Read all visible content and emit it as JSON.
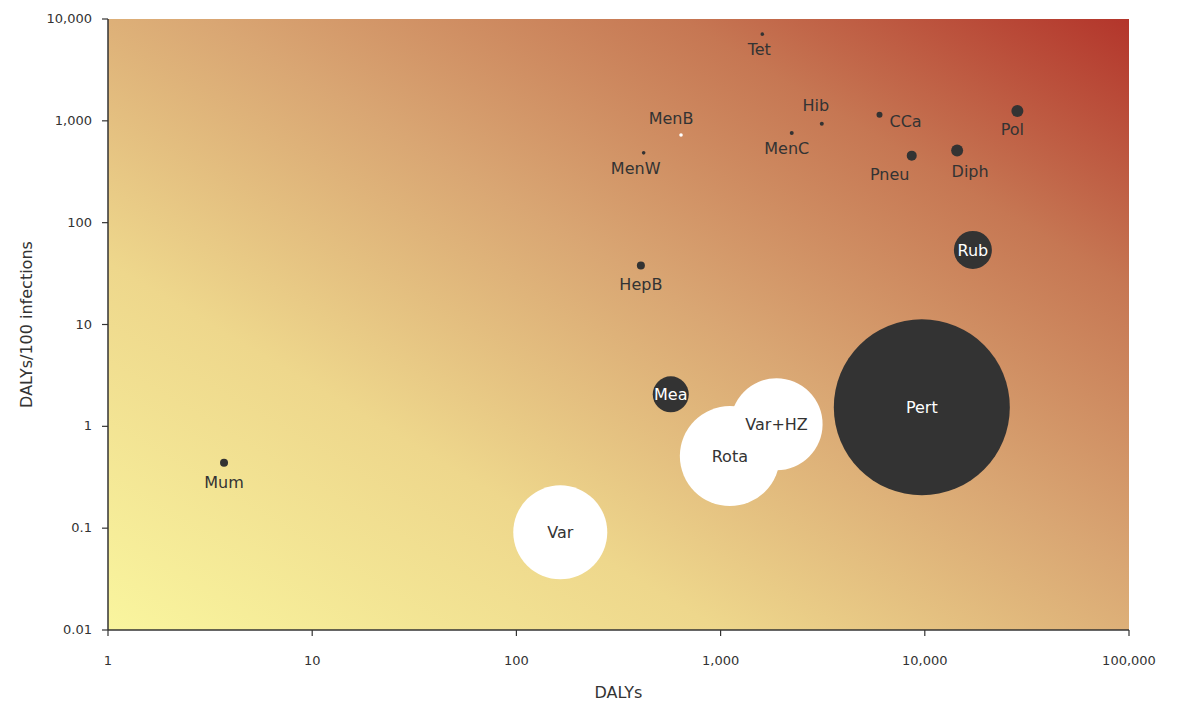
{
  "chart_data": {
    "type": "bubble",
    "x_label": "DALYs",
    "y_label": "DALYs/100 infections",
    "log": true,
    "grid": false,
    "labels": [
      "Mum",
      "Var",
      "Rota",
      "Var+HZ",
      "Mea",
      "Pert",
      "HepB",
      "Rub",
      "MenW",
      "MenB",
      "MenC",
      "Hib",
      "Tet",
      "CCa",
      "Pneu",
      "Diph",
      "Pol"
    ],
    "x": [
      3.7,
      164,
      1110,
      1880,
      570,
      9670,
      407,
      17200,
      420,
      640,
      2230,
      3130,
      1600,
      6000,
      8630,
      14400,
      28400
    ],
    "y": [
      0.44,
      0.091,
      0.51,
      1.05,
      2.06,
      1.54,
      38,
      54,
      485,
      725,
      760,
      935,
      7100,
      1150,
      455,
      510,
      1250
    ],
    "sizes": [
      16,
      2209,
      2500,
      2116,
      324,
      7744,
      16,
      361,
      2,
      2,
      4,
      4,
      2,
      9,
      25,
      36,
      36
    ],
    "colors": [
      "#333333",
      "#ffffff",
      "#ffffff",
      "#ffffff",
      "#333333",
      "#333333",
      "#333333",
      "#333333",
      "#333333",
      "#ffffff",
      "#333333",
      "#333333",
      "#333333",
      "#333333",
      "#333333",
      "#333333",
      "#333333"
    ],
    "xlim": [
      1,
      100000
    ],
    "ylim": [
      0.01,
      10000
    ],
    "xticks": [
      1,
      10,
      100,
      {
        "value": 1000,
        "label": "1,000"
      },
      {
        "value": 10000,
        "label": "10,000"
      },
      {
        "value": 100000,
        "label": "100,000"
      }
    ],
    "yticks": [
      0.01,
      0.1,
      1,
      10,
      100,
      {
        "value": 1000,
        "label": "1,000"
      },
      {
        "value": 10000,
        "label": "10,000"
      }
    ]
  }
}
